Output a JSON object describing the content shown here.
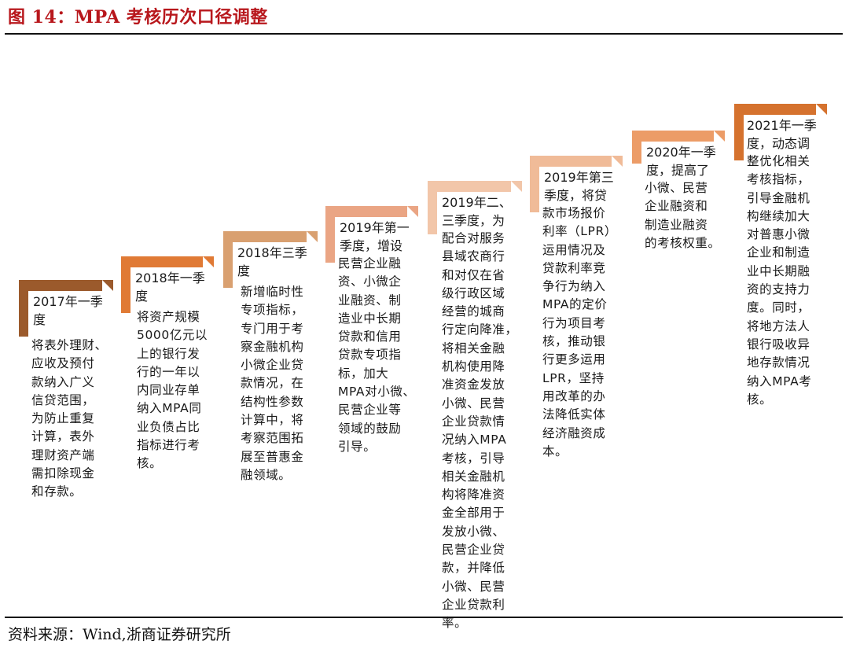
{
  "figure_title": "图 14：MPA 考核历次口径调整",
  "source": "资料来源：Wind,浙商证券研究所",
  "colors": {
    "title": "#b8171c"
  },
  "steps": [
    {
      "label": "2017年一季\n度",
      "text": "将表外理财、\n应收及预付\n款纳入广义\n信贷范围，\n为防止重复\n计算，表外\n理财资产端\n需扣除现金\n和存款。",
      "color": "#9b5a2c"
    },
    {
      "label": "2018年一季\n度",
      "text": "将资产规模\n5000亿元以\n上的银行发\n行的一年以\n内同业存单\n纳入MPA同\n业负债占比\n指标进行考\n核。",
      "color": "#e07a35"
    },
    {
      "label": "2018年三季\n度",
      "text": "新增临时性\n专项指标，\n专门用于考\n察金融机构\n小微企业贷\n款情况，在\n结构性参数\n计算中，将\n考察范围拓\n展至普惠金\n融领域。",
      "color": "#d9a070"
    },
    {
      "label": "2019年第一\n季度，增设",
      "text": "民营企业融\n资、小微企\n业融资、制\n造业中长期\n贷款和信用\n贷款专项指\n标，加大\nMPA对小微、\n民营企业等\n领域的鼓励\n引导。",
      "color": "#eaa584"
    },
    {
      "label": "2019年二、\n三季度，为",
      "text": "配合对服务\n县域农商行\n和对仅在省\n级行政区域\n经营的城商\n行定向降准，\n将相关金融\n机构使用降\n准资金发放\n小微、民营\n企业贷款情\n况纳入MPA\n考核，引导\n相关金融机\n构将降准资\n金全部用于\n发放小微、\n民营企业贷\n款，并降低\n小微、民营\n企业贷款利\n率。",
      "color": "#f2c6a9"
    },
    {
      "label": "2019年第三\n季度，将贷",
      "text": "款市场报价\n利率（LPR）\n运用情况及\n贷款利率竞\n争行为纳入\nMPA的定价\n行为项目考\n核，推动银\n行更多运用\nLPR，坚持\n用改革的办\n法降低实体\n经济融资成\n本。",
      "color": "#f0bb98"
    },
    {
      "label": "2020年一季\n度，提高了",
      "text": "小微、民营\n企业融资和\n制造业融资\n的考核权重。",
      "color": "#ec9c67"
    },
    {
      "label": "2021年一季\n度，动态调",
      "text": "整优化相关\n考核指标，\n引导金融机\n构继续加大\n对普惠小微\n企业和制造\n业中长期融\n资的支持力\n度。同时，\n将地方法人\n银行吸收异\n地存款情况\n纳入MPA考\n核。",
      "color": "#d5722e"
    }
  ]
}
